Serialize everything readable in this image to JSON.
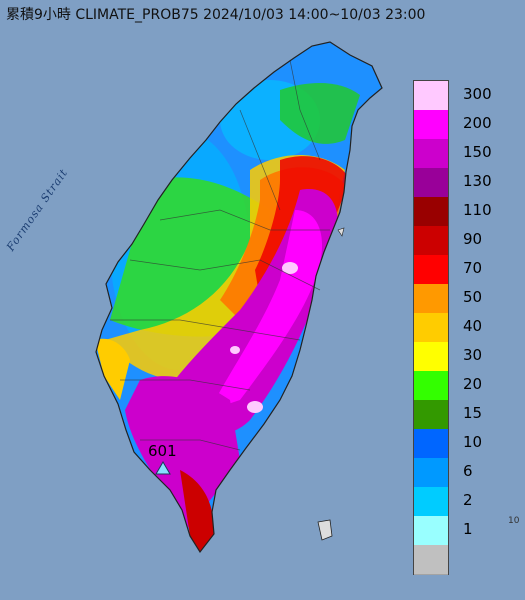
{
  "title": "累積9小時 CLIMATE_PROB75 2024/10/03 14:00~10/03 23:00",
  "sea_label": "Formosa Strait",
  "station_label": "601",
  "corner_label": "10",
  "legend": [
    {
      "label": "300",
      "color": "#ffc9ff"
    },
    {
      "label": "200",
      "color": "#ff00ff"
    },
    {
      "label": "150",
      "color": "#cc00cc"
    },
    {
      "label": "130",
      "color": "#990099"
    },
    {
      "label": "110",
      "color": "#990000"
    },
    {
      "label": "90",
      "color": "#cc0000"
    },
    {
      "label": "70",
      "color": "#ff0000"
    },
    {
      "label": "50",
      "color": "#ff9900"
    },
    {
      "label": "40",
      "color": "#ffcc00"
    },
    {
      "label": "30",
      "color": "#ffff00"
    },
    {
      "label": "20",
      "color": "#33ff00"
    },
    {
      "label": "15",
      "color": "#339900"
    },
    {
      "label": "10",
      "color": "#0066ff"
    },
    {
      "label": "6",
      "color": "#0099ff"
    },
    {
      "label": "2",
      "color": "#00ccff"
    },
    {
      "label": "1",
      "color": "#99ffff"
    },
    {
      "label": "",
      "color": "#c0c0c0"
    }
  ]
}
